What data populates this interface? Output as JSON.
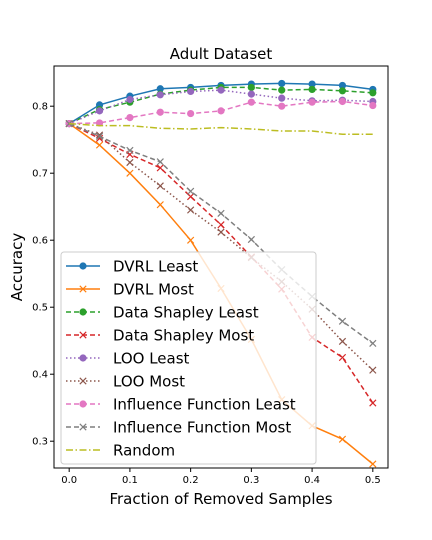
{
  "chart_data": {
    "type": "line",
    "title": "Adult Dataset",
    "xlabel": "Fraction of Removed Samples",
    "ylabel": "Accuracy",
    "xlim": [
      -0.025,
      0.525
    ],
    "ylim": [
      0.26,
      0.86
    ],
    "xticks": [
      0.0,
      0.1,
      0.2,
      0.3,
      0.4,
      0.5
    ],
    "xtick_labels": [
      "0.0",
      "0.1",
      "0.2",
      "0.3",
      "0.4",
      "0.5"
    ],
    "yticks": [
      0.3,
      0.4,
      0.5,
      0.6,
      0.7,
      0.8
    ],
    "ytick_labels": [
      "0.3",
      "0.4",
      "0.5",
      "0.6",
      "0.7",
      "0.8"
    ],
    "grid": false,
    "legend_position": "lower-left",
    "x": [
      0.0,
      0.05,
      0.1,
      0.15,
      0.2,
      0.25,
      0.3,
      0.35,
      0.4,
      0.45,
      0.5
    ],
    "series": [
      {
        "name": "DVRL Least",
        "color": "#1f77b4",
        "linestyle": "solid",
        "marker": "circle",
        "values": [
          0.774,
          0.802,
          0.815,
          0.826,
          0.828,
          0.831,
          0.833,
          0.834,
          0.833,
          0.831,
          0.825
        ]
      },
      {
        "name": "DVRL Most",
        "color": "#ff7f0e",
        "linestyle": "solid",
        "marker": "x",
        "values": [
          0.774,
          0.742,
          0.7,
          0.653,
          0.6,
          0.528,
          0.452,
          0.362,
          0.323,
          0.303,
          0.266
        ]
      },
      {
        "name": "Data Shapley Least",
        "color": "#2ca02c",
        "linestyle": "dashed",
        "marker": "circle",
        "values": [
          0.774,
          0.795,
          0.806,
          0.818,
          0.824,
          0.828,
          0.828,
          0.824,
          0.825,
          0.823,
          0.82
        ]
      },
      {
        "name": "Data Shapley Most",
        "color": "#d62728",
        "linestyle": "dashed",
        "marker": "x",
        "values": [
          0.774,
          0.752,
          0.728,
          0.708,
          0.665,
          0.623,
          0.575,
          0.527,
          0.455,
          0.425,
          0.357
        ]
      },
      {
        "name": "LOO Least",
        "color": "#9467bd",
        "linestyle": "dotted",
        "marker": "circle",
        "values": [
          0.774,
          0.793,
          0.81,
          0.817,
          0.822,
          0.824,
          0.818,
          0.812,
          0.808,
          0.809,
          0.807
        ]
      },
      {
        "name": "LOO Most",
        "color": "#8c564b",
        "linestyle": "dotted",
        "marker": "x",
        "values": [
          0.774,
          0.757,
          0.716,
          0.681,
          0.645,
          0.612,
          0.574,
          0.538,
          0.497,
          0.449,
          0.406
        ]
      },
      {
        "name": "Influence Function Least",
        "color": "#e377c2",
        "linestyle": "dashed",
        "marker": "circle",
        "values": [
          0.774,
          0.775,
          0.783,
          0.791,
          0.789,
          0.793,
          0.806,
          0.8,
          0.806,
          0.807,
          0.801
        ]
      },
      {
        "name": "Influence Function Most",
        "color": "#7f7f7f",
        "linestyle": "dashed",
        "marker": "x",
        "values": [
          0.774,
          0.755,
          0.734,
          0.717,
          0.673,
          0.64,
          0.601,
          0.556,
          0.516,
          0.479,
          0.446
        ]
      },
      {
        "name": "Random",
        "color": "#bcbd22",
        "linestyle": "dashdot",
        "marker": "none",
        "values": [
          0.774,
          0.771,
          0.771,
          0.767,
          0.766,
          0.768,
          0.766,
          0.763,
          0.763,
          0.758,
          0.758
        ]
      }
    ]
  }
}
